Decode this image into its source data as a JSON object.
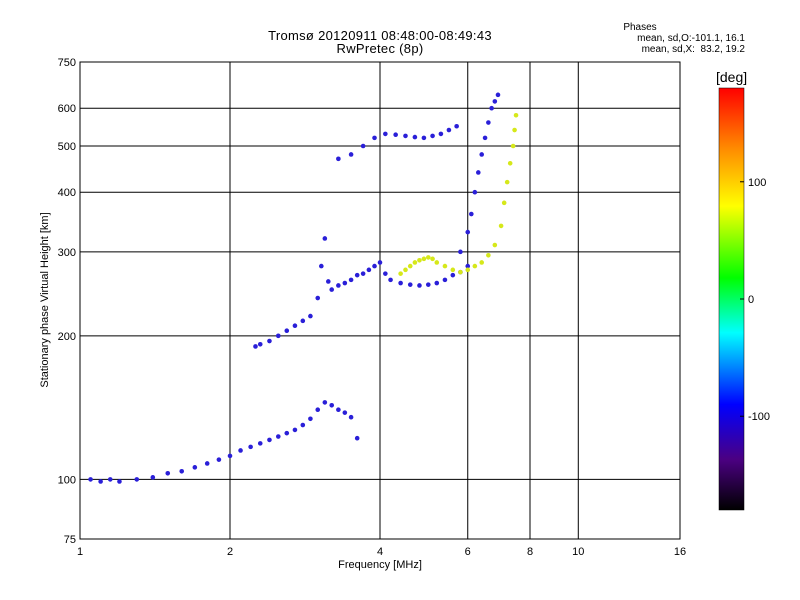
{
  "header": {
    "title_line1": "Tromsø 20120911 08:48:00-08:49:43",
    "title_line2": "RwPretec (8p)",
    "stats_heading": "Phases",
    "stats_o": "mean, sd,O:-101.1, 16.1",
    "stats_x": "mean, sd,X:  83.2, 19.2"
  },
  "colorbar": {
    "unit": "[deg]",
    "ticks": [
      "100",
      "0",
      "-100"
    ],
    "tick_values": [
      100,
      0,
      -100
    ],
    "range": [
      -180,
      180
    ]
  },
  "chart_data": {
    "type": "scatter",
    "title": "Tromsø 20120911 08:48:00-08:49:43",
    "subtitle": "RwPretec (8p)",
    "xlabel": "Frequency [MHz]",
    "ylabel": "Stationary phase Virtual Height [km]",
    "xscale": "log",
    "yscale": "log",
    "xlim": [
      1,
      16
    ],
    "ylim": [
      75,
      750
    ],
    "xticks": [
      1,
      2,
      4,
      6,
      8,
      10,
      16
    ],
    "xtick_labels": [
      "1",
      "2",
      "4",
      "6",
      "8",
      "10",
      "16"
    ],
    "yticks": [
      75,
      100,
      200,
      300,
      400,
      500,
      600,
      750
    ],
    "ytick_labels": [
      "75",
      "100",
      "200",
      "300",
      "400",
      "500",
      "600",
      "750"
    ],
    "grid": true,
    "color_scale": "phase [deg]",
    "series": [
      {
        "name": "O",
        "phase_mean": -101.1,
        "phase_sd": 16.1,
        "x": [
          1.05,
          1.1,
          1.15,
          1.2,
          1.3,
          1.4,
          1.5,
          1.6,
          1.7,
          1.8,
          1.9,
          2.0,
          2.1,
          2.2,
          2.3,
          2.4,
          2.5,
          2.6,
          2.7,
          2.8,
          2.9,
          3.0,
          3.1,
          3.2,
          3.3,
          3.4,
          3.5,
          3.6,
          2.25,
          2.3,
          2.4,
          2.5,
          2.6,
          2.7,
          2.8,
          2.9,
          3.0,
          3.05,
          3.1,
          3.15,
          3.2,
          3.3,
          3.4,
          3.5,
          3.6,
          3.7,
          3.8,
          3.9,
          4.0,
          4.1,
          4.2,
          4.4,
          4.6,
          4.8,
          5.0,
          5.2,
          5.4,
          5.6,
          5.8,
          6.0,
          3.3,
          3.5,
          3.7,
          3.9,
          4.1,
          4.3,
          4.5,
          4.7,
          4.9,
          5.1,
          5.3,
          5.5,
          5.7,
          5.8,
          6.0,
          6.1,
          6.2,
          6.3,
          6.4,
          6.5,
          6.6,
          6.7,
          6.8,
          6.9
        ],
        "y": [
          100,
          99,
          100,
          99,
          100,
          101,
          103,
          104,
          106,
          108,
          110,
          112,
          115,
          117,
          119,
          121,
          123,
          125,
          127,
          130,
          134,
          140,
          145,
          143,
          140,
          138,
          135,
          122,
          190,
          192,
          195,
          200,
          205,
          210,
          215,
          220,
          240,
          280,
          320,
          260,
          250,
          255,
          258,
          262,
          268,
          270,
          275,
          280,
          285,
          270,
          262,
          258,
          256,
          255,
          256,
          258,
          262,
          268,
          272,
          280,
          470,
          480,
          500,
          520,
          530,
          528,
          525,
          522,
          520,
          525,
          530,
          540,
          550,
          300,
          330,
          360,
          400,
          440,
          480,
          520,
          560,
          600,
          620,
          640
        ]
      },
      {
        "name": "X",
        "phase_mean": 83.2,
        "phase_sd": 19.2,
        "x": [
          4.4,
          4.5,
          4.6,
          4.7,
          4.8,
          4.9,
          5.0,
          5.1,
          5.2,
          5.4,
          5.6,
          5.8,
          6.0,
          6.2,
          6.4,
          6.6,
          6.8,
          7.0,
          7.1,
          7.2,
          7.3,
          7.4,
          7.45,
          7.5
        ],
        "y": [
          270,
          275,
          280,
          285,
          288,
          290,
          292,
          290,
          285,
          280,
          275,
          272,
          275,
          280,
          285,
          295,
          310,
          340,
          380,
          420,
          460,
          500,
          540,
          580
        ]
      }
    ]
  }
}
